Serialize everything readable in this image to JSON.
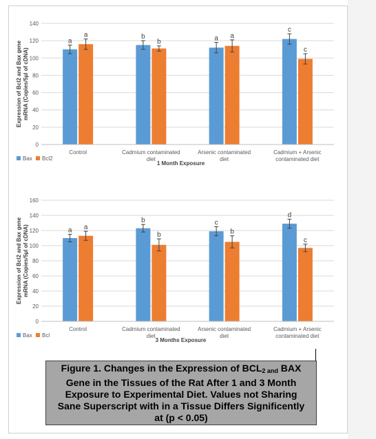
{
  "colors": {
    "bax": "#5b9bd5",
    "bcl2": "#ed7d31",
    "grid": "#d9d9d9",
    "axis_text": "#595959"
  },
  "caption": {
    "part1": "Figure 1. Changes in the Expression of BCL",
    "sub1": "2 and",
    "part2": " BAX Gene in the Tissues of the Rat After 1 and 3 Month Exposure to Experimental Diet. Values not Sharing Sane Superscript with in a Tissue Differs Significently at (p < 0.05)"
  },
  "chart_data": [
    {
      "type": "bar",
      "title": "",
      "xlabel": "1 Month Exposure",
      "ylabel": "Expression of Bcl2 and Bax gene mRNA (Copies/5µl of cDNA)",
      "ylim": [
        0,
        140
      ],
      "yticks": [
        0,
        20,
        40,
        60,
        80,
        100,
        120,
        140
      ],
      "grid": true,
      "legend_position": "bottom-left",
      "categories": [
        "Control",
        "Cadmium contaminated diet",
        "Arsenic contaminated diet",
        "Cadmium + Arsenic contaminated diet"
      ],
      "category_lines": [
        [
          "Control"
        ],
        [
          "Cadmium contaminated",
          "diet"
        ],
        [
          "Arsenic contaminated",
          "diet"
        ],
        [
          "Cadmium + Arsenic",
          "contaminated diet"
        ]
      ],
      "series": [
        {
          "name": "Bax",
          "color": "#5b9bd5",
          "values": [
            110,
            115,
            112,
            122
          ],
          "errors": [
            5,
            5,
            6,
            6
          ],
          "letters": [
            "a",
            "b",
            "a",
            "c"
          ]
        },
        {
          "name": "Bcl2",
          "color": "#ed7d31",
          "values": [
            116,
            111,
            114,
            99
          ],
          "errors": [
            6,
            3,
            7,
            6
          ],
          "letters": [
            "a",
            "b",
            "a",
            "c"
          ]
        }
      ]
    },
    {
      "type": "bar",
      "title": "",
      "xlabel": "3 Months Exposure",
      "ylabel": "Expression of Bcl2 and Bax gene mRNA (Copies/5µl of cDNA)",
      "ylim": [
        0,
        160
      ],
      "yticks": [
        0,
        20,
        40,
        60,
        80,
        100,
        120,
        140,
        160
      ],
      "grid": true,
      "legend_position": "bottom-left",
      "categories": [
        "Control",
        "Cadmium contaminated diet",
        "Arsenic contaminated diet",
        "Cadmium + Arsenic contaminated diet"
      ],
      "category_lines": [
        [
          "Control"
        ],
        [
          "Cadmium contaminated",
          "diet"
        ],
        [
          "Arsenic contaminated",
          "diet"
        ],
        [
          "Cadmium + Arsenic",
          "contaminated diet"
        ]
      ],
      "series": [
        {
          "name": "Bax",
          "color": "#5b9bd5",
          "values": [
            110,
            123,
            119,
            129
          ],
          "errors": [
            5,
            5,
            6,
            6
          ],
          "letters": [
            "a",
            "b",
            "c",
            "d"
          ]
        },
        {
          "name": "Bcl",
          "color": "#ed7d31",
          "values": [
            113,
            101,
            105,
            97
          ],
          "errors": [
            6,
            8,
            8,
            5
          ],
          "letters": [
            "a",
            "b",
            "b",
            "c"
          ]
        }
      ]
    }
  ]
}
